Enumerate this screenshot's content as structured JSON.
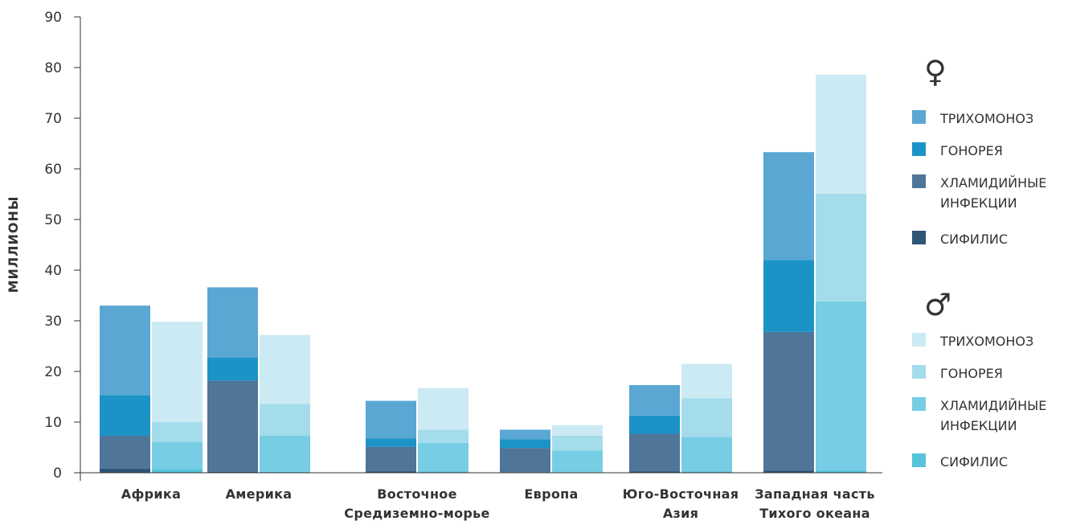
{
  "chart_data": {
    "type": "bar",
    "stacked": true,
    "grouped": true,
    "categories": [
      [
        "Африка"
      ],
      [
        "Америка"
      ],
      [
        "Восточное",
        "Средиземно-морье"
      ],
      [
        "Европа"
      ],
      [
        "Юго-Восточная",
        "Азия"
      ],
      [
        "Западная часть",
        "Тихого океана"
      ]
    ],
    "ylabel": "МИЛЛИОНЫ",
    "ylim": [
      0,
      90
    ],
    "yticks": [
      0,
      10,
      20,
      30,
      40,
      50,
      60,
      70,
      80,
      90
    ],
    "grid": false,
    "legend_position": "right",
    "groups": [
      {
        "symbol": "♀",
        "series": [
          {
            "name": "СИФИЛИС",
            "color": "#2f5577",
            "values": [
              0.8,
              0.2,
              0.3,
              0.1,
              0.3,
              0.4
            ]
          },
          {
            "name": "ХЛАМИДИЙНЫЕ ИНФЕКЦИИ",
            "color": "#4f7599",
            "values": [
              6.5,
              18.0,
              4.8,
              4.8,
              7.4,
              27.4
            ]
          },
          {
            "name": "ГОНОРЕЯ",
            "color": "#1b93c7",
            "values": [
              8.0,
              4.5,
              1.7,
              1.7,
              3.6,
              14.2
            ]
          },
          {
            "name": "ТРИХОМОНОЗ",
            "color": "#5aa7d4",
            "values": [
              17.7,
              13.9,
              7.4,
              1.9,
              6.0,
              21.3
            ]
          }
        ]
      },
      {
        "symbol": "♂",
        "series": [
          {
            "name": "СИФИЛИС",
            "color": "#55c4dc",
            "values": [
              0.7,
              0.2,
              0.3,
              0.1,
              0.3,
              0.4
            ]
          },
          {
            "name": "ХЛАМИДИЙНЫЕ ИНФЕКЦИИ",
            "color": "#76cde4",
            "values": [
              5.4,
              7.1,
              5.6,
              4.3,
              6.8,
              33.4
            ]
          },
          {
            "name": "ГОНОРЕЯ",
            "color": "#a4dcec",
            "values": [
              3.9,
              6.3,
              2.6,
              2.9,
              7.6,
              21.3
            ]
          },
          {
            "name": "ТРИХОМОНОЗ",
            "color": "#cbeaf3",
            "values": [
              19.8,
              13.6,
              8.2,
              2.1,
              6.8,
              23.5
            ]
          }
        ]
      }
    ]
  }
}
